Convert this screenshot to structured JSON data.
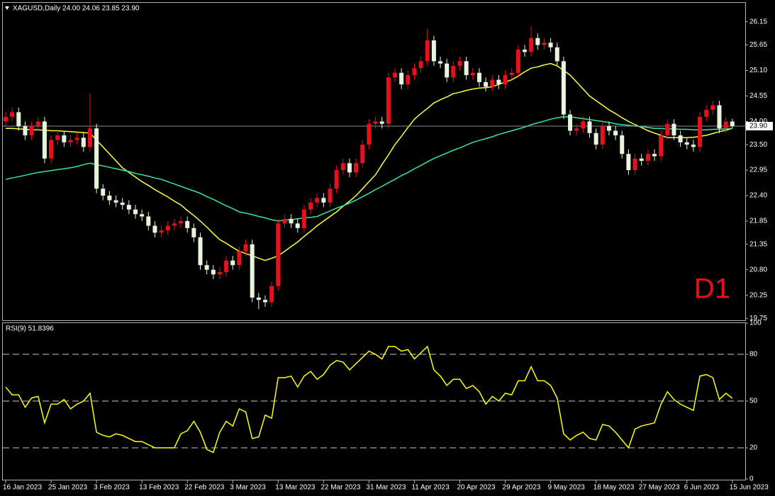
{
  "chart_data": [
    {
      "type": "candlestick",
      "title": "XAGUSD,Daily  24.00 24.06 23.85 23.90",
      "categories": [
        "16 Jan 2023",
        null,
        null,
        null,
        null,
        null,
        null,
        "25 Jan 2023",
        null,
        null,
        null,
        null,
        null,
        null,
        "3 Feb 2023",
        null,
        null,
        null,
        null,
        null,
        null,
        "13 Feb 2023",
        null,
        null,
        null,
        null,
        null,
        null,
        "22 Feb 2023",
        null,
        null,
        null,
        null,
        null,
        null,
        "3 Mar 2023",
        null,
        null,
        null,
        null,
        null,
        null,
        "13 Mar 2023",
        null,
        null,
        null,
        null,
        null,
        null,
        "22 Mar 2023",
        null,
        null,
        null,
        null,
        null,
        null,
        "31 Mar 2023",
        null,
        null,
        null,
        null,
        null,
        null,
        "11 Apr 2023",
        null,
        null,
        null,
        null,
        null,
        null,
        "20 Apr 2023",
        null,
        null,
        null,
        null,
        null,
        null,
        "29 Apr 2023",
        null,
        null,
        null,
        null,
        null,
        null,
        "9 May 2023",
        null,
        null,
        null,
        null,
        null,
        null,
        "18 May 2023",
        null,
        null,
        null,
        null,
        null,
        null,
        "27 May 2023",
        null,
        null,
        null,
        null,
        null,
        null,
        "6 Jun 2023",
        null,
        null,
        null,
        null,
        null,
        null,
        "15 Jun 2023"
      ],
      "open": [
        24.0,
        24.1,
        24.2,
        23.9,
        23.7,
        23.9,
        24.0,
        23.2,
        23.6,
        23.7,
        23.55,
        23.6,
        23.65,
        23.45,
        23.85,
        22.55,
        22.4,
        22.3,
        22.25,
        22.2,
        22.1,
        22.0,
        21.95,
        21.75,
        21.6,
        21.65,
        21.75,
        21.8,
        21.85,
        21.7,
        21.5,
        20.9,
        20.8,
        20.7,
        20.75,
        21.0,
        20.9,
        21.2,
        21.35,
        20.2,
        20.15,
        20.1,
        20.45,
        21.8,
        21.9,
        21.8,
        21.7,
        22.1,
        22.25,
        22.35,
        22.25,
        22.55,
        22.95,
        23.1,
        22.9,
        23.1,
        23.5,
        23.95,
        24.0,
        23.95,
        24.95,
        25.05,
        24.8,
        25.0,
        25.15,
        25.3,
        25.75,
        25.3,
        25.25,
        24.95,
        25.2,
        25.3,
        25.0,
        25.05,
        24.85,
        24.75,
        24.9,
        24.8,
        25.0,
        25.05,
        25.55,
        25.5,
        25.8,
        25.65,
        25.7,
        25.6,
        25.3,
        24.15,
        23.8,
        23.85,
        24.0,
        23.75,
        23.5,
        23.9,
        23.8,
        23.7,
        23.3,
        22.95,
        23.2,
        23.15,
        23.3,
        23.25,
        23.7,
        23.95,
        23.7,
        23.55,
        23.5,
        23.45,
        24.1,
        24.25,
        24.35,
        23.85,
        24.0
      ],
      "high": [
        24.2,
        24.3,
        24.3,
        24.0,
        24.0,
        24.1,
        24.1,
        23.7,
        23.8,
        23.8,
        23.7,
        23.75,
        23.75,
        24.6,
        23.95,
        22.65,
        22.5,
        22.4,
        22.35,
        22.3,
        22.2,
        22.1,
        22.05,
        21.85,
        21.75,
        21.85,
        21.9,
        21.95,
        21.95,
        21.8,
        21.6,
        21.0,
        20.9,
        20.85,
        21.1,
        21.1,
        21.3,
        21.45,
        21.45,
        20.3,
        20.25,
        20.55,
        21.9,
        22.0,
        22.0,
        21.9,
        22.2,
        22.35,
        22.45,
        22.45,
        22.65,
        23.05,
        23.2,
        23.2,
        23.2,
        23.6,
        24.05,
        24.1,
        24.1,
        25.05,
        25.15,
        25.15,
        25.1,
        25.25,
        25.4,
        26.0,
        25.85,
        25.4,
        25.35,
        25.3,
        25.4,
        25.4,
        25.15,
        25.15,
        24.95,
        25.0,
        25.0,
        25.1,
        25.15,
        25.65,
        25.65,
        26.05,
        25.9,
        25.8,
        25.8,
        25.7,
        25.4,
        24.25,
        23.95,
        24.1,
        24.1,
        23.85,
        24.0,
        24.0,
        23.9,
        23.8,
        23.4,
        23.3,
        23.3,
        23.4,
        23.4,
        23.8,
        24.05,
        24.05,
        23.8,
        23.65,
        23.6,
        24.2,
        24.35,
        24.45,
        24.45,
        24.1,
        24.06
      ],
      "low": [
        23.9,
        24.0,
        23.8,
        23.6,
        23.6,
        23.8,
        23.1,
        23.1,
        23.5,
        23.45,
        23.45,
        23.5,
        23.35,
        23.35,
        22.45,
        22.3,
        22.2,
        22.15,
        22.1,
        22.0,
        21.9,
        21.85,
        21.65,
        21.5,
        21.5,
        21.55,
        21.65,
        21.7,
        21.6,
        21.4,
        20.8,
        20.7,
        20.6,
        20.6,
        20.65,
        20.8,
        20.8,
        21.1,
        20.1,
        19.95,
        20.0,
        20.0,
        20.35,
        21.7,
        21.7,
        21.6,
        21.6,
        22.0,
        22.15,
        22.15,
        22.15,
        22.45,
        22.85,
        22.8,
        22.8,
        23.0,
        23.4,
        23.85,
        23.85,
        23.85,
        24.85,
        24.7,
        24.7,
        24.9,
        25.05,
        25.2,
        25.2,
        25.15,
        24.85,
        24.85,
        25.1,
        24.9,
        24.9,
        24.75,
        24.65,
        24.65,
        24.7,
        24.7,
        24.9,
        24.95,
        25.4,
        25.4,
        25.55,
        25.55,
        25.5,
        25.2,
        24.05,
        23.7,
        23.7,
        23.75,
        23.65,
        23.4,
        23.4,
        23.7,
        23.6,
        23.2,
        22.85,
        22.85,
        23.05,
        23.05,
        23.15,
        23.15,
        23.6,
        23.6,
        23.45,
        23.4,
        23.35,
        23.35,
        24.0,
        24.15,
        23.75,
        23.75,
        23.85
      ],
      "close": [
        24.1,
        24.2,
        23.9,
        23.7,
        23.9,
        24.0,
        23.2,
        23.6,
        23.7,
        23.55,
        23.6,
        23.65,
        23.45,
        23.85,
        22.55,
        22.4,
        22.3,
        22.25,
        22.2,
        22.1,
        22.0,
        21.95,
        21.75,
        21.6,
        21.65,
        21.75,
        21.8,
        21.85,
        21.7,
        21.5,
        20.9,
        20.8,
        20.7,
        20.75,
        21.0,
        20.9,
        21.2,
        21.35,
        20.2,
        20.15,
        20.1,
        20.45,
        21.8,
        21.9,
        21.8,
        21.7,
        22.1,
        22.25,
        22.35,
        22.25,
        22.55,
        22.95,
        23.1,
        22.9,
        23.1,
        23.5,
        23.95,
        24.0,
        23.95,
        24.95,
        25.05,
        24.8,
        25.0,
        25.15,
        25.3,
        25.75,
        25.3,
        25.25,
        24.95,
        25.2,
        25.3,
        25.0,
        25.05,
        24.85,
        24.75,
        24.9,
        24.8,
        25.0,
        25.05,
        25.55,
        25.5,
        25.8,
        25.65,
        25.7,
        25.6,
        25.3,
        24.15,
        23.8,
        23.85,
        24.0,
        23.75,
        23.5,
        23.9,
        23.8,
        23.7,
        23.3,
        22.95,
        23.2,
        23.15,
        23.3,
        23.25,
        23.7,
        23.95,
        23.7,
        23.55,
        23.5,
        23.45,
        24.1,
        24.25,
        24.35,
        23.85,
        24.0,
        23.9
      ],
      "bull_color": "#e8101a",
      "bear_color": "#e8f5dc",
      "overlays": [
        {
          "color": "#ffff33",
          "values": [
            23.85,
            23.85,
            23.84,
            23.83,
            23.82,
            23.82,
            23.81,
            23.8,
            23.8,
            23.79,
            23.78,
            23.77,
            23.76,
            23.75,
            23.6,
            23.45,
            23.3,
            23.15,
            23.0,
            22.9,
            22.8,
            22.7,
            22.62,
            22.53,
            22.45,
            22.37,
            22.28,
            22.2,
            22.08,
            21.97,
            21.85,
            21.72,
            21.58,
            21.45,
            21.37,
            21.28,
            21.2,
            21.15,
            21.1,
            21.05,
            21.0,
            21.05,
            21.1,
            21.2,
            21.3,
            21.4,
            21.52,
            21.63,
            21.75,
            21.85,
            21.95,
            22.05,
            22.17,
            22.28,
            22.4,
            22.55,
            22.7,
            22.85,
            23.07,
            23.28,
            23.5,
            23.68,
            23.87,
            24.05,
            24.17,
            24.28,
            24.4,
            24.47,
            24.53,
            24.6,
            24.63,
            24.67,
            24.7,
            24.72,
            24.73,
            24.75,
            24.8,
            24.85,
            24.9,
            24.98,
            25.07,
            25.15,
            25.18,
            25.22,
            25.25,
            25.2,
            25.1,
            25.0,
            24.85,
            24.7,
            24.55,
            24.45,
            24.35,
            24.25,
            24.17,
            24.08,
            24.0,
            23.93,
            23.87,
            23.8,
            23.75,
            23.7,
            23.65,
            23.65,
            23.65,
            23.65,
            23.66,
            23.68,
            23.7,
            23.74,
            23.78,
            23.81,
            23.85
          ]
        },
        {
          "color": "#33e6a6",
          "values": [
            22.75,
            22.78,
            22.81,
            22.84,
            22.87,
            22.9,
            22.92,
            22.94,
            22.96,
            22.98,
            23.0,
            23.03,
            23.07,
            23.1,
            23.07,
            23.04,
            23.01,
            22.98,
            22.95,
            22.92,
            22.88,
            22.85,
            22.82,
            22.78,
            22.75,
            22.7,
            22.65,
            22.6,
            22.55,
            22.5,
            22.45,
            22.38,
            22.32,
            22.25,
            22.18,
            22.12,
            22.05,
            22.02,
            21.99,
            21.95,
            21.92,
            21.88,
            21.85,
            21.87,
            21.88,
            21.9,
            21.92,
            21.93,
            21.95,
            22.01,
            22.07,
            22.13,
            22.18,
            22.24,
            22.3,
            22.38,
            22.45,
            22.53,
            22.6,
            22.68,
            22.75,
            22.83,
            22.9,
            22.98,
            23.05,
            23.13,
            23.2,
            23.26,
            23.32,
            23.38,
            23.43,
            23.49,
            23.55,
            23.59,
            23.63,
            23.67,
            23.72,
            23.76,
            23.8,
            23.84,
            23.88,
            23.93,
            23.97,
            24.01,
            24.05,
            24.08,
            24.1,
            24.1,
            24.08,
            24.06,
            24.04,
            24.02,
            24.0,
            23.98,
            23.95,
            23.93,
            23.92,
            23.9,
            23.89,
            23.87,
            23.85,
            23.85,
            23.84,
            23.84,
            23.83,
            23.83,
            23.82,
            23.82,
            23.82,
            23.83,
            23.83,
            23.84,
            23.85
          ]
        }
      ],
      "ylim": [
        19.71,
        26.56
      ],
      "yticks": [
        26.15,
        25.65,
        {
          "value": 25.1,
          "label": "25.10"
        },
        24.55,
        {
          "value": 24,
          "label": "24.00"
        },
        {
          "value": 23.5,
          "label": "23.50"
        },
        22.95,
        {
          "value": 22.4,
          "label": "22.40"
        },
        21.85,
        21.35,
        {
          "value": 20.8,
          "label": "20.80"
        },
        20.25,
        19.75
      ],
      "current_price": {
        "value": 23.9,
        "label": "23.90"
      },
      "annotation": "D1",
      "annotation_color": "#e8101a"
    },
    {
      "type": "line",
      "title": "RSI(9) 51.8396",
      "color": "#ffff00",
      "values": [
        59,
        54,
        54,
        46,
        52,
        53,
        36,
        48,
        48,
        51,
        45,
        48,
        50,
        55,
        30,
        28,
        27,
        29,
        28,
        26,
        24,
        24,
        22,
        20,
        20,
        20,
        20,
        29,
        31,
        37,
        30,
        19,
        17,
        30,
        37,
        34,
        45,
        43,
        26,
        27,
        41,
        39,
        65,
        65,
        66,
        59,
        66,
        69,
        64,
        67,
        73,
        76,
        75,
        70,
        74,
        78,
        82,
        80,
        77,
        85,
        85,
        82,
        83,
        77,
        81,
        85,
        70,
        66,
        60,
        64,
        64,
        58,
        60,
        56,
        48,
        53,
        50,
        55,
        54,
        63,
        63,
        72,
        63,
        63,
        60,
        52,
        29,
        25,
        28,
        30,
        26,
        25,
        35,
        34,
        30,
        25,
        20,
        32,
        34,
        35,
        36,
        48,
        56,
        51,
        48,
        46,
        44,
        66,
        67,
        65,
        51,
        55,
        51.8396
      ],
      "ylim": [
        0,
        100
      ],
      "yticks": [
        100,
        80,
        50,
        20,
        0
      ],
      "levels": [
        80,
        50,
        20
      ]
    }
  ]
}
